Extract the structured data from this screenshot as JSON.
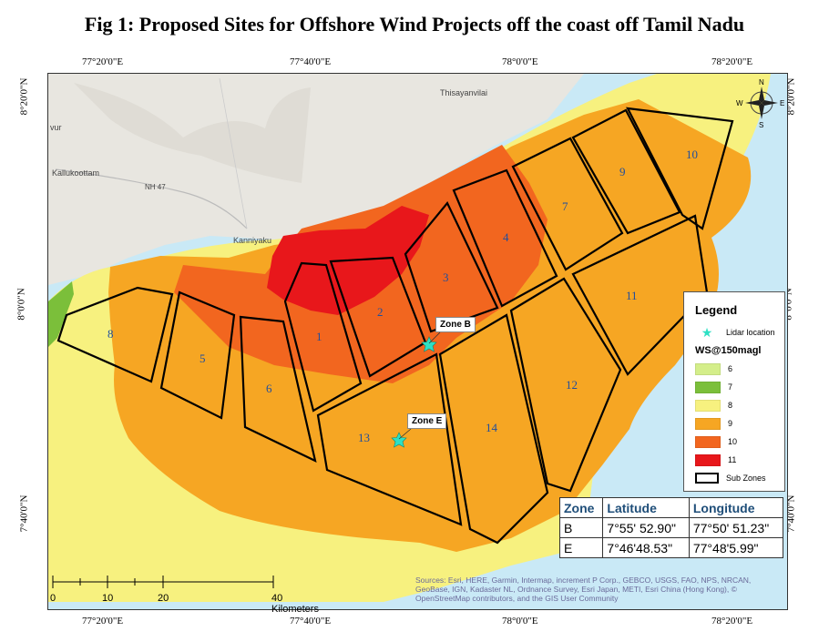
{
  "title": "Fig 1: Proposed Sites for Offshore Wind Projects off the coast off Tamil Nadu",
  "coords": {
    "top": [
      "77°20'0\"E",
      "77°40'0\"E",
      "78°0'0\"E",
      "78°20'0\"E"
    ],
    "bottom": [
      "77°20'0\"E",
      "77°40'0\"E",
      "78°0'0\"E",
      "78°20'0\"E"
    ],
    "left": [
      "8°20'0\"N",
      "8°0'0\"N",
      "7°40'0\"N"
    ],
    "right": [
      "8°20'0\"N",
      "8°0'0\"N",
      "7°40'0\"N"
    ]
  },
  "place_names": {
    "thisayanvilai": "Thisayanvilai",
    "kallukoottam": "Kallukoottam",
    "kanniyakumari": "Kanniyaku",
    "nh47": "NH 47",
    "vur": "vur"
  },
  "zone_numbers": [
    "1",
    "2",
    "3",
    "4",
    "5",
    "6",
    "7",
    "8",
    "9",
    "10",
    "11",
    "12",
    "13",
    "14"
  ],
  "callouts": {
    "zone_b": "Zone B",
    "zone_e": "Zone E"
  },
  "compass": {
    "n": "N",
    "s": "S",
    "e": "E",
    "w": "W"
  },
  "legend": {
    "title": "Legend",
    "lidar_label": "Lidar location",
    "ws_label": "WS@150magl",
    "classes": [
      {
        "label": "6",
        "color": "#d4ee8a"
      },
      {
        "label": "7",
        "color": "#7bbf3a"
      },
      {
        "label": "8",
        "color": "#f7f17f"
      },
      {
        "label": "9",
        "color": "#f6a623"
      },
      {
        "label": "10",
        "color": "#f2661f"
      },
      {
        "label": "11",
        "color": "#e8171b"
      }
    ],
    "subzones_label": "Sub Zones"
  },
  "table": {
    "headers": [
      "Zone",
      "Latitude",
      "Longitude"
    ],
    "rows": [
      [
        "B",
        "7°55' 52.90\"",
        "77°50' 51.23\""
      ],
      [
        "E",
        "7°46'48.53\"",
        "77°48'5.99\""
      ]
    ]
  },
  "scale": {
    "labels": [
      "0",
      "10",
      "20",
      "40 Kilometers"
    ]
  },
  "credits": "Sources: Esri, HERE, Garmin, Intermap, increment P Corp., GEBCO, USGS, FAO, NPS, NRCAN, GeoBase, IGN, Kadaster NL, Ordnance Survey, Esri Japan, METI, Esri China (Hong Kong), © OpenStreetMap contributors, and the GIS User Community",
  "colors": {
    "sea": "#c9e9f6",
    "land": "#e8e6e0",
    "yellow": "#f7f17f",
    "orange": "#f6a623",
    "darkorange": "#f2661f",
    "red": "#e8171b",
    "green": "#7bbf3a",
    "zone_label": "#1f4e9e"
  }
}
